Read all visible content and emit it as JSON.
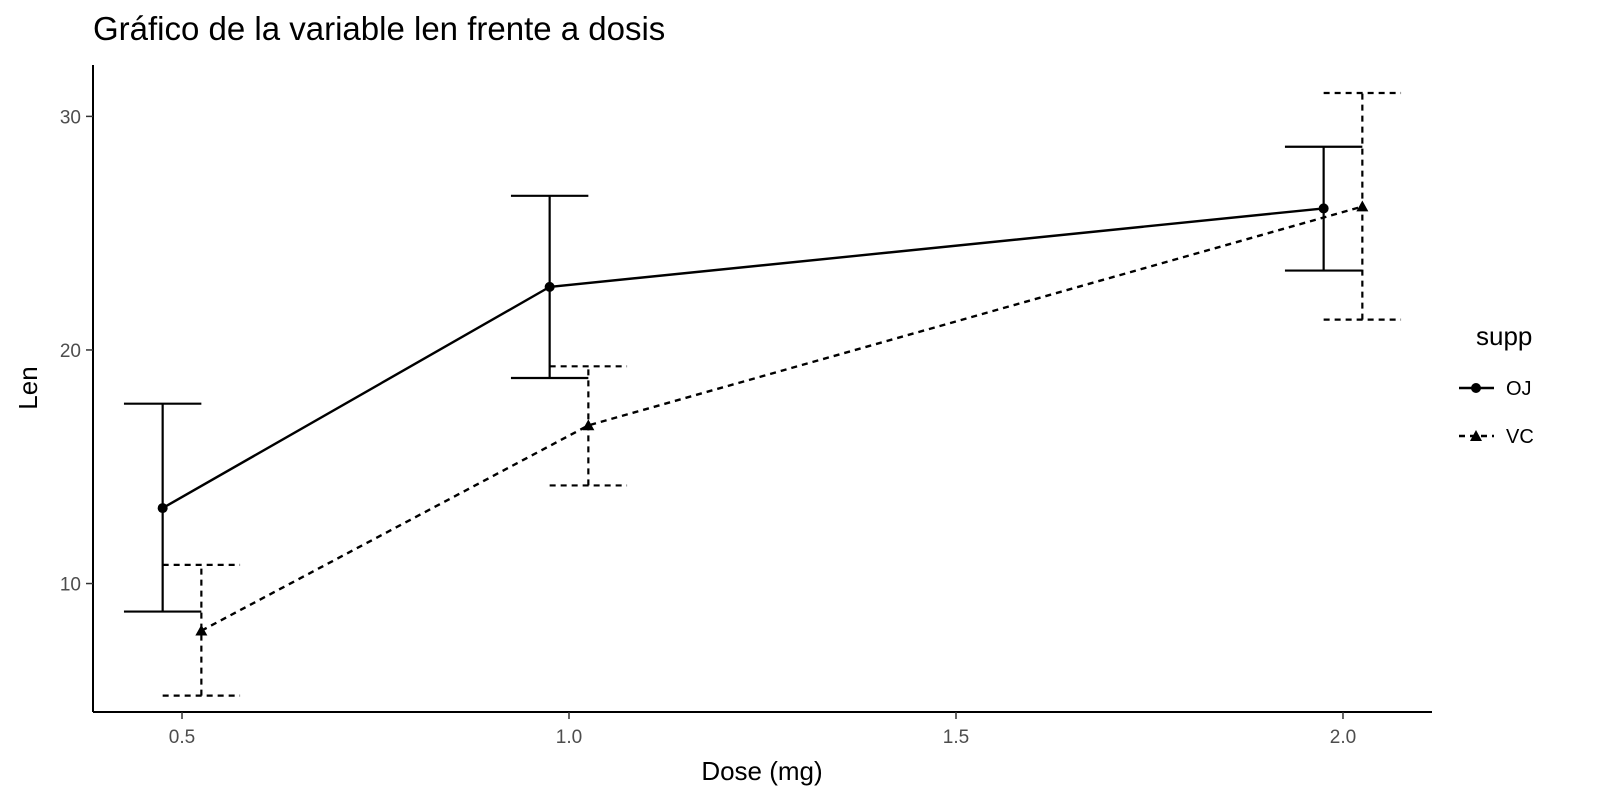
{
  "chart_data": {
    "type": "line",
    "title": "Gráfico de la variable len frente a dosis",
    "xlabel": "Dose (mg)",
    "ylabel": "Len",
    "x": [
      0.5,
      1.0,
      2.0
    ],
    "xticks": [
      "0.5",
      "1.0",
      "1.5",
      "2.0"
    ],
    "xtick_values": [
      0.5,
      1.0,
      1.5,
      2.0
    ],
    "yticks": [
      "10",
      "20",
      "30"
    ],
    "ytick_values": [
      10,
      20,
      30
    ],
    "xlim": [
      0.385,
      2.115
    ],
    "ylim": [
      4.5,
      32.2
    ],
    "grid": false,
    "legend": {
      "title": "supp",
      "position": "right"
    },
    "series": [
      {
        "name": "OJ",
        "marker": "circle",
        "linestyle": "solid",
        "values": [
          13.23,
          22.7,
          26.06
        ],
        "error_low": [
          8.8,
          18.8,
          23.4
        ],
        "error_high": [
          17.7,
          26.6,
          28.7
        ]
      },
      {
        "name": "VC",
        "marker": "triangle",
        "linestyle": "dashed",
        "values": [
          7.98,
          16.77,
          26.14
        ],
        "error_low": [
          5.2,
          14.2,
          21.3
        ],
        "error_high": [
          10.8,
          19.3,
          31.0
        ]
      }
    ]
  }
}
